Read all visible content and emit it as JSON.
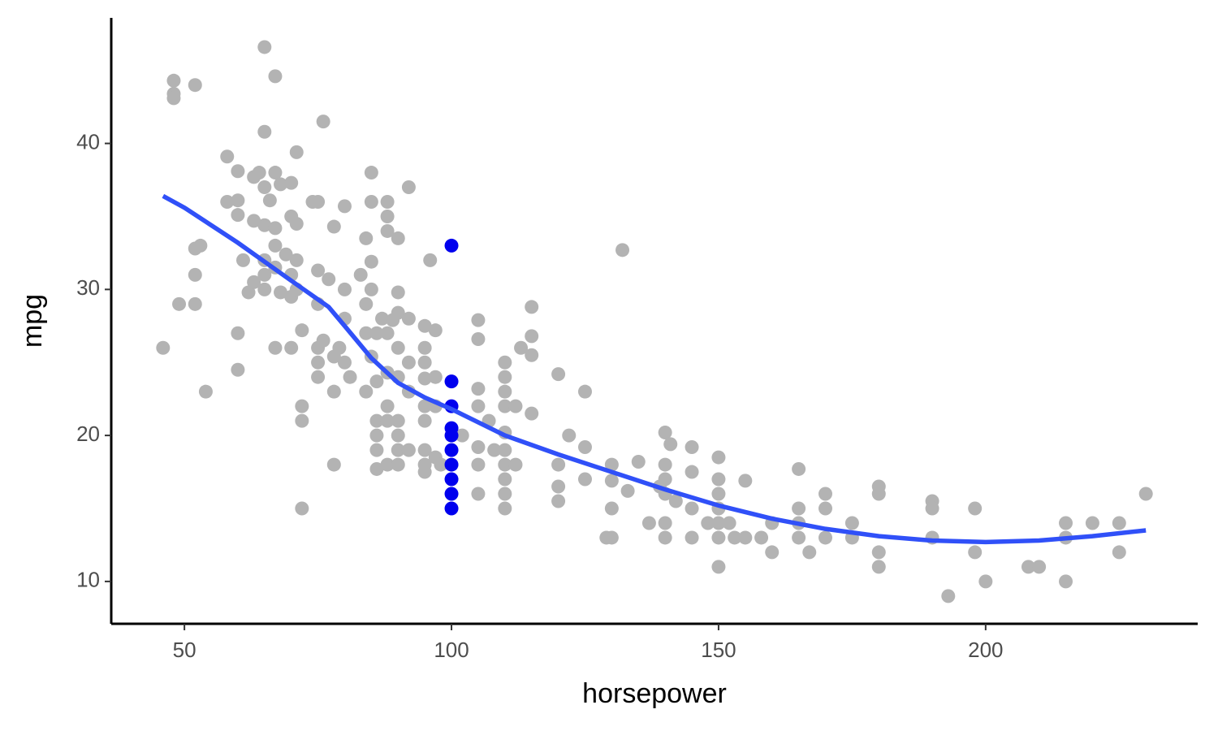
{
  "chart_data": {
    "type": "scatter",
    "x_label": "horsepower",
    "y_label": "mpg",
    "xlim": [
      36.3,
      239.7
    ],
    "ylim": [
      7.1,
      48.6
    ],
    "xticks": [
      50,
      100,
      150,
      200
    ],
    "yticks": [
      10,
      20,
      30,
      40
    ],
    "grid": false,
    "series": [
      {
        "type": "scatter",
        "color": "#b3b3b3",
        "x": [
          46,
          48,
          48,
          48,
          49,
          52,
          52,
          52,
          52,
          53,
          54,
          58,
          58,
          60,
          60,
          60,
          60,
          60,
          61,
          62,
          63,
          63,
          63,
          64,
          65,
          65,
          65,
          65,
          65,
          65,
          65,
          66,
          67,
          67,
          67,
          67,
          67,
          67,
          68,
          68,
          69,
          70,
          70,
          70,
          70,
          70,
          71,
          71,
          71,
          71,
          72,
          72,
          72,
          72,
          74,
          75,
          75,
          75,
          75,
          75,
          75,
          76,
          76,
          77,
          78,
          78,
          78,
          78,
          79,
          80,
          80,
          80,
          80,
          81,
          83,
          84,
          84,
          84,
          84,
          85,
          85,
          85,
          85,
          85,
          86,
          86,
          86,
          86,
          86,
          86,
          87,
          88,
          88,
          88,
          88,
          88,
          88,
          88,
          88,
          89,
          90,
          90,
          90,
          90,
          90,
          90,
          90,
          90,
          90,
          92,
          92,
          92,
          92,
          92,
          95,
          95,
          95,
          95,
          95,
          95,
          95,
          95,
          95,
          96,
          97,
          97,
          97,
          97,
          98,
          102,
          105,
          105,
          105,
          105,
          105,
          105,
          105,
          107,
          108,
          110,
          110,
          110,
          110,
          110,
          110,
          110,
          110,
          110,
          110,
          112,
          112,
          113,
          115,
          115,
          115,
          115,
          120,
          120,
          120,
          120,
          122,
          125,
          125,
          125,
          129,
          130,
          130,
          130,
          130,
          132,
          133,
          135,
          137,
          139,
          140,
          140,
          140,
          140,
          140,
          140,
          141,
          142,
          145,
          145,
          145,
          145,
          148,
          150,
          150,
          150,
          150,
          150,
          150,
          150,
          152,
          153,
          155,
          155,
          158,
          160,
          160,
          165,
          165,
          165,
          165,
          167,
          170,
          170,
          170,
          175,
          175,
          180,
          180,
          180,
          180,
          190,
          190,
          190,
          193,
          198,
          198,
          200,
          208,
          210,
          215,
          215,
          215,
          220,
          225,
          225,
          230
        ],
        "values": [
          26,
          43.4,
          43.1,
          44.3,
          29,
          44,
          32.8,
          31,
          29,
          33,
          23,
          39.1,
          36,
          38.1,
          36.1,
          35.1,
          27,
          24.5,
          32,
          29.8,
          37.7,
          34.7,
          30.5,
          38,
          46.6,
          40.8,
          37,
          34.4,
          32,
          31,
          30,
          36.1,
          44.6,
          38,
          34.2,
          33,
          31.5,
          26,
          37.2,
          29.8,
          32.4,
          37.3,
          35,
          31,
          29.5,
          26,
          39.4,
          34.5,
          32,
          30,
          27.2,
          22,
          21,
          15,
          36,
          36,
          31.3,
          29,
          26,
          25,
          24,
          41.5,
          26.5,
          30.7,
          34.3,
          25.4,
          23,
          18,
          26,
          35.7,
          30,
          28,
          25,
          24,
          31,
          29,
          33.5,
          27,
          23,
          38,
          36,
          31.9,
          30,
          25.4,
          27,
          23.7,
          21,
          20,
          19,
          17.7,
          28,
          36,
          35,
          34,
          27,
          24.3,
          22,
          21,
          18,
          27.9,
          33.5,
          29.8,
          28.4,
          26,
          24,
          21,
          20,
          19,
          18,
          37,
          28,
          25,
          23,
          19,
          27.5,
          26,
          25,
          23.9,
          22,
          21,
          19,
          18,
          17.5,
          32,
          27.2,
          24,
          22,
          18.5,
          18,
          20,
          27.9,
          26.6,
          23.2,
          22,
          19.2,
          18,
          16,
          21,
          19,
          25,
          24,
          23,
          22,
          20.2,
          19,
          18,
          17,
          16,
          15,
          22,
          18,
          26,
          28.8,
          26.8,
          25.5,
          21.5,
          24.2,
          18,
          16.5,
          15.5,
          20,
          23,
          19.2,
          17,
          13,
          18,
          16.9,
          15,
          13,
          32.7,
          16.2,
          18.2,
          14,
          16.5,
          20.2,
          18,
          17,
          16,
          14,
          13,
          19.4,
          15.5,
          19.2,
          17.5,
          15,
          13,
          14,
          18.5,
          17,
          16,
          15,
          14,
          13,
          11,
          14,
          13,
          16.9,
          13,
          13,
          14,
          12,
          17.7,
          15,
          14,
          13,
          12,
          16,
          15,
          13,
          14,
          13,
          16.5,
          16,
          12,
          11,
          15.5,
          15,
          13,
          9,
          15,
          12,
          10,
          11,
          11,
          14,
          13,
          10,
          14,
          14,
          12,
          16
        ]
      },
      {
        "type": "scatter",
        "color": "#0000ee",
        "x": [
          100,
          100,
          100,
          100,
          100,
          100,
          100,
          100,
          100,
          100
        ],
        "values": [
          33,
          23.7,
          22,
          20.5,
          20,
          19,
          18,
          17,
          16,
          15
        ]
      },
      {
        "type": "line",
        "color": "#3050f8",
        "x": [
          46,
          50,
          60,
          70,
          77,
          80,
          85,
          90,
          95,
          100,
          110,
          120,
          130,
          140,
          150,
          160,
          170,
          180,
          190,
          200,
          210,
          220,
          230
        ],
        "values": [
          36.4,
          35.6,
          33.2,
          30.6,
          28.8,
          27.5,
          25.3,
          23.6,
          22.6,
          21.8,
          20,
          18.7,
          17.5,
          16.3,
          15.2,
          14.3,
          13.6,
          13.1,
          12.8,
          12.7,
          12.8,
          13.1,
          13.5
        ]
      }
    ]
  }
}
